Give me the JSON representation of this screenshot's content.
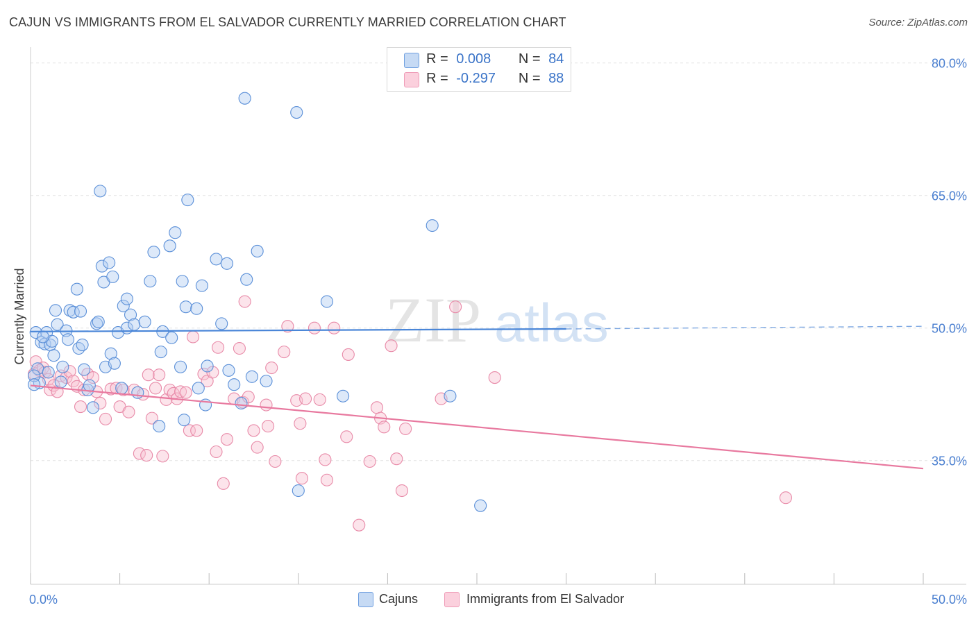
{
  "header": {
    "title": "CAJUN VS IMMIGRANTS FROM EL SALVADOR CURRENTLY MARRIED CORRELATION CHART",
    "source": "Source: ZipAtlas.com"
  },
  "watermark": {
    "zip": "ZIP",
    "atlas": "atlas"
  },
  "legend": {
    "r_label": "R =",
    "n_label": "N =",
    "rows": [
      {
        "r": "0.008",
        "n": "84",
        "color": "#a9c8ee"
      },
      {
        "r": "-0.297",
        "n": "88",
        "color": "#f6b9cb"
      }
    ]
  },
  "bottom_legend": [
    {
      "label": "Cajuns",
      "color": "#a9c8ee"
    },
    {
      "label": "Immigrants from El Salvador",
      "color": "#f6b9cb"
    }
  ],
  "chart_data": {
    "type": "scatter",
    "title": "CAJUN VS IMMIGRANTS FROM EL SALVADOR CURRENTLY MARRIED CORRELATION CHART",
    "xlabel": "",
    "ylabel": "Currently Married",
    "xlim": [
      0,
      50
    ],
    "ylim": [
      21,
      81
    ],
    "x_tick_labels": [
      "0.0%",
      "50.0%"
    ],
    "y_ticks": [
      35,
      50,
      65,
      80
    ],
    "y_tick_labels": [
      "35.0%",
      "50.0%",
      "65.0%",
      "80.0%"
    ],
    "grid": true,
    "colors": {
      "cajuns": "#4a86d8",
      "salvador": "#e8799f",
      "tick_text": "#4a7fd0"
    },
    "series": [
      {
        "name": "Cajuns",
        "trend": {
          "x1": 0,
          "y1": 49.6,
          "x2": 30,
          "y2": 49.9,
          "dash_to_x": 50,
          "dash_to_y": 50.2
        },
        "points": [
          [
            0.3,
            49.5
          ],
          [
            0.4,
            45.4
          ],
          [
            0.5,
            43.8
          ],
          [
            0.6,
            48.4
          ],
          [
            0.8,
            48.2
          ],
          [
            0.9,
            49.5
          ],
          [
            1.0,
            45.0
          ],
          [
            1.1,
            48.1
          ],
          [
            1.2,
            48.5
          ],
          [
            1.4,
            52.0
          ],
          [
            1.5,
            50.4
          ],
          [
            1.7,
            43.9
          ],
          [
            1.8,
            45.6
          ],
          [
            2.0,
            49.7
          ],
          [
            2.1,
            48.7
          ],
          [
            2.2,
            52.0
          ],
          [
            2.4,
            51.8
          ],
          [
            2.6,
            54.4
          ],
          [
            2.8,
            51.9
          ],
          [
            2.7,
            47.7
          ],
          [
            2.9,
            48.1
          ],
          [
            3.0,
            45.3
          ],
          [
            3.2,
            43.0
          ],
          [
            3.3,
            43.5
          ],
          [
            3.5,
            41.0
          ],
          [
            3.7,
            50.5
          ],
          [
            3.8,
            50.7
          ],
          [
            3.9,
            65.5
          ],
          [
            4.0,
            57.0
          ],
          [
            4.1,
            55.2
          ],
          [
            4.2,
            45.6
          ],
          [
            4.4,
            57.4
          ],
          [
            4.5,
            47.1
          ],
          [
            4.6,
            55.8
          ],
          [
            4.7,
            46.0
          ],
          [
            4.9,
            49.5
          ],
          [
            5.1,
            43.2
          ],
          [
            5.2,
            52.5
          ],
          [
            5.4,
            50.0
          ],
          [
            5.4,
            53.3
          ],
          [
            5.6,
            51.5
          ],
          [
            5.8,
            50.4
          ],
          [
            6.0,
            42.7
          ],
          [
            6.4,
            50.7
          ],
          [
            6.7,
            55.3
          ],
          [
            6.9,
            58.6
          ],
          [
            7.2,
            38.9
          ],
          [
            7.3,
            47.3
          ],
          [
            7.4,
            49.6
          ],
          [
            7.8,
            59.3
          ],
          [
            7.9,
            48.9
          ],
          [
            8.1,
            60.8
          ],
          [
            8.4,
            45.6
          ],
          [
            8.5,
            55.3
          ],
          [
            8.6,
            39.6
          ],
          [
            8.7,
            52.4
          ],
          [
            8.8,
            64.5
          ],
          [
            9.3,
            52.2
          ],
          [
            9.4,
            43.2
          ],
          [
            9.6,
            54.8
          ],
          [
            9.8,
            41.3
          ],
          [
            9.9,
            45.7
          ],
          [
            10.4,
            57.8
          ],
          [
            10.7,
            50.5
          ],
          [
            11.0,
            57.3
          ],
          [
            11.1,
            45.2
          ],
          [
            11.4,
            43.6
          ],
          [
            11.8,
            41.5
          ],
          [
            12.0,
            76.0
          ],
          [
            12.1,
            55.5
          ],
          [
            12.4,
            44.5
          ],
          [
            12.7,
            58.7
          ],
          [
            13.2,
            44.0
          ],
          [
            14.9,
            74.4
          ],
          [
            15.0,
            31.6
          ],
          [
            16.6,
            53.0
          ],
          [
            17.5,
            42.3
          ],
          [
            22.5,
            61.6
          ],
          [
            23.5,
            42.3
          ],
          [
            25.2,
            29.9
          ],
          [
            0.2,
            44.6
          ],
          [
            1.3,
            46.9
          ],
          [
            0.2,
            43.6
          ],
          [
            0.7,
            49.0
          ]
        ]
      },
      {
        "name": "Immigrants from El Salvador",
        "trend": {
          "x1": 0,
          "y1": 43.5,
          "x2": 50,
          "y2": 34.1
        },
        "points": [
          [
            0.2,
            44.8
          ],
          [
            0.3,
            46.2
          ],
          [
            0.5,
            45.2
          ],
          [
            0.7,
            45.5
          ],
          [
            0.8,
            45.0
          ],
          [
            1.0,
            44.2
          ],
          [
            1.1,
            43.0
          ],
          [
            1.3,
            43.5
          ],
          [
            1.5,
            42.8
          ],
          [
            1.7,
            44.6
          ],
          [
            2.0,
            44.4
          ],
          [
            2.2,
            45.1
          ],
          [
            2.4,
            44.0
          ],
          [
            2.6,
            43.4
          ],
          [
            2.8,
            41.1
          ],
          [
            3.0,
            43.0
          ],
          [
            3.2,
            44.8
          ],
          [
            3.5,
            44.4
          ],
          [
            3.7,
            42.8
          ],
          [
            3.9,
            41.5
          ],
          [
            4.2,
            39.7
          ],
          [
            4.5,
            43.1
          ],
          [
            4.8,
            43.2
          ],
          [
            5.0,
            41.1
          ],
          [
            5.2,
            43.0
          ],
          [
            5.5,
            40.5
          ],
          [
            5.8,
            43.0
          ],
          [
            6.1,
            35.8
          ],
          [
            6.3,
            42.5
          ],
          [
            6.5,
            35.6
          ],
          [
            6.6,
            44.7
          ],
          [
            6.8,
            39.8
          ],
          [
            7.0,
            43.2
          ],
          [
            7.2,
            44.7
          ],
          [
            7.4,
            35.5
          ],
          [
            7.6,
            41.9
          ],
          [
            7.8,
            43.0
          ],
          [
            8.0,
            42.6
          ],
          [
            8.2,
            42.0
          ],
          [
            8.4,
            42.8
          ],
          [
            8.7,
            42.7
          ],
          [
            8.9,
            38.4
          ],
          [
            9.1,
            49.0
          ],
          [
            9.3,
            38.4
          ],
          [
            9.7,
            44.8
          ],
          [
            9.9,
            44.0
          ],
          [
            10.2,
            45.0
          ],
          [
            10.4,
            36.0
          ],
          [
            10.5,
            47.8
          ],
          [
            10.8,
            32.4
          ],
          [
            11.0,
            37.4
          ],
          [
            11.4,
            42.0
          ],
          [
            11.7,
            47.7
          ],
          [
            11.9,
            41.6
          ],
          [
            12.0,
            53.0
          ],
          [
            12.2,
            42.2
          ],
          [
            12.5,
            38.4
          ],
          [
            12.7,
            36.5
          ],
          [
            13.2,
            41.3
          ],
          [
            13.3,
            38.9
          ],
          [
            13.5,
            45.5
          ],
          [
            13.7,
            34.9
          ],
          [
            14.2,
            47.3
          ],
          [
            14.4,
            50.2
          ],
          [
            14.9,
            41.8
          ],
          [
            15.1,
            39.2
          ],
          [
            15.2,
            33.0
          ],
          [
            15.4,
            42.0
          ],
          [
            15.9,
            50.0
          ],
          [
            16.2,
            41.9
          ],
          [
            16.5,
            35.1
          ],
          [
            16.6,
            32.8
          ],
          [
            17.0,
            50.0
          ],
          [
            17.7,
            37.7
          ],
          [
            17.8,
            47.0
          ],
          [
            18.4,
            27.7
          ],
          [
            19.0,
            34.9
          ],
          [
            19.4,
            41.0
          ],
          [
            19.6,
            39.8
          ],
          [
            19.8,
            38.8
          ],
          [
            20.2,
            48.0
          ],
          [
            20.5,
            35.2
          ],
          [
            20.8,
            31.6
          ],
          [
            21.0,
            38.6
          ],
          [
            23.0,
            42.0
          ],
          [
            23.8,
            52.4
          ],
          [
            26.0,
            44.4
          ],
          [
            42.3,
            30.8
          ]
        ]
      }
    ]
  }
}
